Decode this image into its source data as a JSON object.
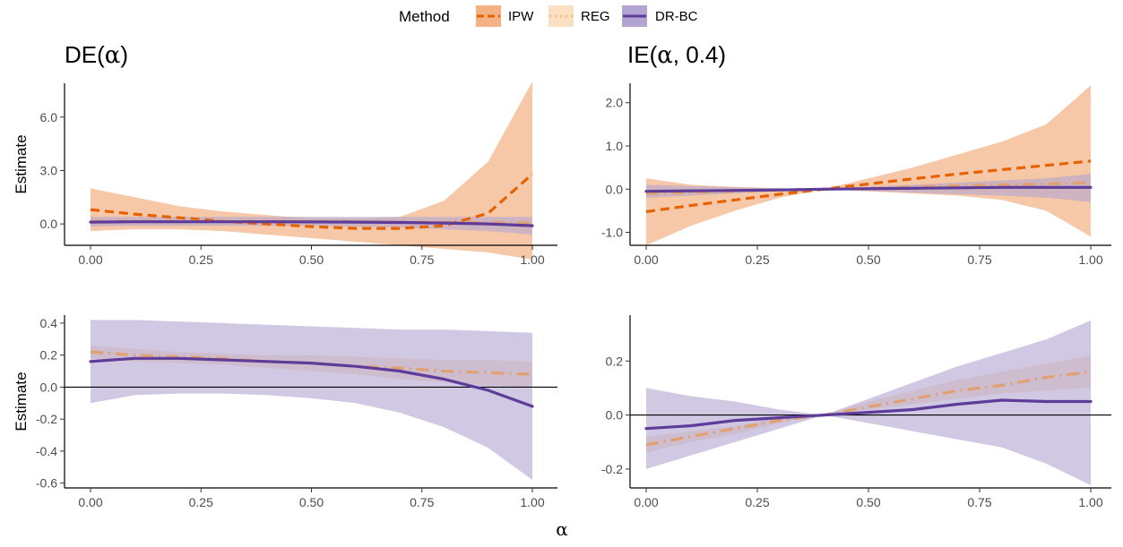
{
  "legend": {
    "title": "Method",
    "items": [
      {
        "label": "IPW",
        "color": "#E66100",
        "fill": "#F4B183",
        "dash": "10,6"
      },
      {
        "label": "REG",
        "color": "#F5B97A",
        "fill": "#FBE0C3",
        "dash": "2,5"
      },
      {
        "label": "DR-BC",
        "color": "#5E3C99",
        "fill": "#B2A5D1",
        "dash": ""
      }
    ]
  },
  "titles": {
    "de_prefix": "DE(",
    "de_greek": "α",
    "de_suffix": ")",
    "ie_prefix": "IE(",
    "ie_greek": "α",
    "ie_suffix": ", 0.4)"
  },
  "x_axis_label": "α",
  "chart_data": [
    {
      "type": "line",
      "panel": "DE top",
      "ylabel": "Estimate",
      "x": [
        0,
        0.1,
        0.2,
        0.3,
        0.4,
        0.5,
        0.6,
        0.7,
        0.8,
        0.9,
        1.0
      ],
      "xticks": [
        0,
        0.25,
        0.5,
        0.75,
        1.0
      ],
      "xtick_labels": [
        "0.00",
        "0.25",
        "0.50",
        "0.75",
        "1.00"
      ],
      "ylim": [
        -1.2,
        7.9
      ],
      "yticks": [
        0,
        3,
        6
      ],
      "ytick_labels": [
        "0.0",
        "3.0",
        "6.0"
      ],
      "hline": null,
      "series": [
        {
          "name": "IPW",
          "values": [
            0.8,
            0.55,
            0.35,
            0.15,
            0.0,
            -0.15,
            -0.25,
            -0.25,
            -0.1,
            0.6,
            2.8
          ],
          "lower": [
            -0.4,
            -0.3,
            -0.3,
            -0.4,
            -0.6,
            -0.8,
            -1.0,
            -1.2,
            -1.4,
            -1.6,
            -2.0
          ],
          "upper": [
            2.0,
            1.5,
            1.0,
            0.7,
            0.5,
            0.3,
            0.3,
            0.4,
            1.3,
            3.5,
            8.0
          ]
        },
        {
          "name": "REG",
          "values": [
            0.15,
            0.15,
            0.15,
            0.15,
            0.15,
            0.13,
            0.12,
            0.1,
            0.08,
            0.07,
            0.05
          ],
          "lower": [
            -0.1,
            -0.1,
            -0.1,
            -0.1,
            -0.1,
            -0.1,
            -0.1,
            -0.1,
            -0.1,
            -0.1,
            -0.1
          ],
          "upper": [
            0.4,
            0.4,
            0.4,
            0.4,
            0.4,
            0.4,
            0.35,
            0.3,
            0.3,
            0.3,
            0.3
          ]
        },
        {
          "name": "DR-BC",
          "values": [
            0.1,
            0.12,
            0.12,
            0.12,
            0.12,
            0.11,
            0.1,
            0.08,
            0.05,
            0.0,
            -0.1
          ],
          "lower": [
            -0.15,
            -0.1,
            -0.1,
            -0.1,
            -0.1,
            -0.1,
            -0.15,
            -0.2,
            -0.3,
            -0.4,
            -0.6
          ],
          "upper": [
            0.4,
            0.4,
            0.4,
            0.4,
            0.4,
            0.4,
            0.4,
            0.4,
            0.4,
            0.4,
            0.4
          ]
        }
      ]
    },
    {
      "type": "line",
      "panel": "IE top",
      "ylabel": "",
      "x": [
        0,
        0.1,
        0.2,
        0.3,
        0.4,
        0.5,
        0.6,
        0.7,
        0.8,
        0.9,
        1.0
      ],
      "xticks": [
        0,
        0.25,
        0.5,
        0.75,
        1.0
      ],
      "xtick_labels": [
        "0.00",
        "0.25",
        "0.50",
        "0.75",
        "1.00"
      ],
      "ylim": [
        -1.3,
        2.45
      ],
      "yticks": [
        -1,
        0,
        1,
        2
      ],
      "ytick_labels": [
        "-1.0",
        "0.0",
        "1.0",
        "2.0"
      ],
      "hline": null,
      "series": [
        {
          "name": "IPW",
          "values": [
            -0.52,
            -0.38,
            -0.25,
            -0.12,
            0.0,
            0.12,
            0.24,
            0.35,
            0.45,
            0.55,
            0.65
          ],
          "lower": [
            -1.3,
            -0.85,
            -0.5,
            -0.2,
            0.0,
            -0.05,
            -0.1,
            -0.15,
            -0.25,
            -0.5,
            -1.1
          ],
          "upper": [
            0.25,
            0.1,
            0.05,
            0.02,
            0.0,
            0.25,
            0.5,
            0.8,
            1.1,
            1.5,
            2.4
          ]
        },
        {
          "name": "REG",
          "values": [
            -0.1,
            -0.08,
            -0.05,
            -0.02,
            0.0,
            0.02,
            0.05,
            0.08,
            0.1,
            0.12,
            0.15
          ],
          "lower": [
            -0.25,
            -0.18,
            -0.1,
            -0.05,
            0.0,
            -0.03,
            -0.05,
            -0.08,
            -0.1,
            -0.12,
            -0.15
          ],
          "upper": [
            0.05,
            0.02,
            0.0,
            0.0,
            0.0,
            0.07,
            0.15,
            0.22,
            0.3,
            0.36,
            0.45
          ]
        },
        {
          "name": "DR-BC",
          "values": [
            -0.05,
            -0.04,
            -0.03,
            -0.02,
            0.0,
            0.01,
            0.02,
            0.03,
            0.04,
            0.04,
            0.04
          ],
          "lower": [
            -0.2,
            -0.15,
            -0.1,
            -0.05,
            0.0,
            -0.04,
            -0.08,
            -0.12,
            -0.15,
            -0.2,
            -0.3
          ],
          "upper": [
            0.1,
            0.07,
            0.04,
            0.02,
            0.0,
            0.06,
            0.1,
            0.15,
            0.2,
            0.25,
            0.35
          ]
        }
      ]
    },
    {
      "type": "line",
      "panel": "DE bottom",
      "ylabel": "Estimate",
      "x": [
        0,
        0.1,
        0.2,
        0.3,
        0.4,
        0.5,
        0.6,
        0.7,
        0.8,
        0.9,
        1.0
      ],
      "xticks": [
        0,
        0.25,
        0.5,
        0.75,
        1.0
      ],
      "xtick_labels": [
        "0.00",
        "0.25",
        "0.50",
        "0.75",
        "1.00"
      ],
      "ylim": [
        -0.63,
        0.45
      ],
      "yticks": [
        -0.6,
        -0.4,
        -0.2,
        0,
        0.2,
        0.4
      ],
      "ytick_labels": [
        "-0.6",
        "-0.4",
        "-0.2",
        "0.0",
        "0.2",
        "0.4"
      ],
      "hline": 0,
      "series": [
        {
          "name": "REG",
          "values": [
            0.22,
            0.2,
            0.19,
            0.18,
            0.16,
            0.15,
            0.13,
            0.12,
            0.1,
            0.09,
            0.08
          ],
          "lower": [
            0.18,
            0.16,
            0.15,
            0.14,
            0.12,
            0.1,
            0.08,
            0.05,
            0.03,
            0.01,
            0.0
          ],
          "upper": [
            0.26,
            0.24,
            0.22,
            0.21,
            0.2,
            0.2,
            0.19,
            0.18,
            0.17,
            0.17,
            0.16
          ]
        },
        {
          "name": "DR-BC",
          "values": [
            0.16,
            0.18,
            0.18,
            0.17,
            0.16,
            0.15,
            0.13,
            0.1,
            0.05,
            -0.02,
            -0.12
          ],
          "lower": [
            -0.1,
            -0.05,
            -0.04,
            -0.04,
            -0.05,
            -0.07,
            -0.1,
            -0.16,
            -0.25,
            -0.38,
            -0.58
          ],
          "upper": [
            0.42,
            0.42,
            0.41,
            0.4,
            0.39,
            0.38,
            0.37,
            0.36,
            0.36,
            0.35,
            0.34
          ]
        }
      ]
    },
    {
      "type": "line",
      "panel": "IE bottom",
      "ylabel": "",
      "x": [
        0,
        0.1,
        0.2,
        0.3,
        0.4,
        0.5,
        0.6,
        0.7,
        0.8,
        0.9,
        1.0
      ],
      "xticks": [
        0,
        0.25,
        0.5,
        0.75,
        1.0
      ],
      "xtick_labels": [
        "0.00",
        "0.25",
        "0.50",
        "0.75",
        "1.00"
      ],
      "ylim": [
        -0.27,
        0.37
      ],
      "yticks": [
        -0.2,
        0,
        0.2
      ],
      "ytick_labels": [
        "-0.2",
        "0.0",
        "0.2"
      ],
      "hline": 0,
      "series": [
        {
          "name": "REG",
          "values": [
            -0.11,
            -0.08,
            -0.05,
            -0.02,
            0.0,
            0.03,
            0.06,
            0.09,
            0.11,
            0.14,
            0.16
          ],
          "lower": [
            -0.14,
            -0.1,
            -0.07,
            -0.03,
            0.0,
            0.02,
            0.04,
            0.06,
            0.08,
            0.09,
            0.1
          ],
          "upper": [
            -0.08,
            -0.06,
            -0.04,
            -0.01,
            0.0,
            0.05,
            0.09,
            0.13,
            0.16,
            0.19,
            0.22
          ]
        },
        {
          "name": "DR-BC",
          "values": [
            -0.05,
            -0.04,
            -0.02,
            -0.01,
            0.0,
            0.01,
            0.02,
            0.04,
            0.055,
            0.05,
            0.05
          ],
          "lower": [
            -0.2,
            -0.15,
            -0.1,
            -0.05,
            0.0,
            -0.03,
            -0.06,
            -0.09,
            -0.12,
            -0.18,
            -0.26
          ],
          "upper": [
            0.1,
            0.07,
            0.05,
            0.02,
            0.0,
            0.06,
            0.12,
            0.18,
            0.23,
            0.28,
            0.35
          ]
        }
      ]
    }
  ]
}
